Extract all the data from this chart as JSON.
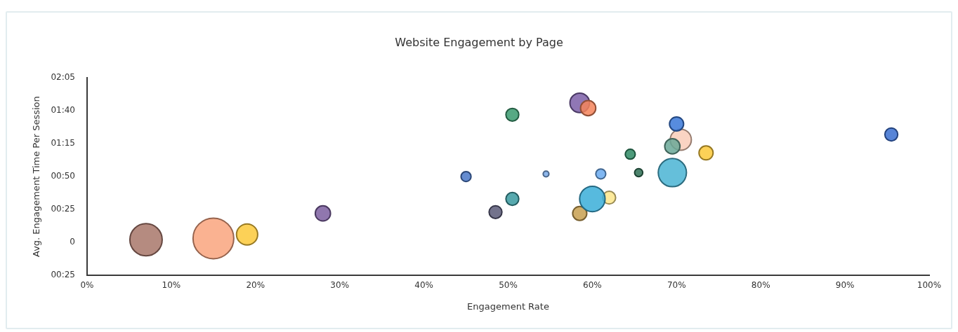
{
  "chart_data": {
    "type": "bubble",
    "title": "Website Engagement by Page",
    "xlabel": "Engagement Rate",
    "ylabel": "Avg. Engagement Time Per Session",
    "x": [
      7,
      15,
      19,
      28,
      45,
      50.5,
      50.5,
      48.5,
      54.5,
      61,
      58.5,
      59.5,
      58.5,
      62,
      60,
      64.5,
      65.5,
      70.5,
      70,
      69.5,
      69.5,
      73.5,
      95.5
    ],
    "values": [
      2,
      3,
      6,
      22,
      50,
      97,
      33,
      23,
      52,
      52,
      106,
      102,
      22,
      34,
      33,
      67,
      53,
      78,
      90,
      73,
      53,
      68,
      82
    ],
    "sizes": [
      0.63,
      1,
      0.27,
      0.14,
      0.06,
      0.1,
      0.1,
      0.1,
      0.02,
      0.06,
      0.23,
      0.14,
      0.12,
      0.1,
      0.39,
      0.06,
      0.04,
      0.27,
      0.12,
      0.14,
      0.48,
      0.12,
      0.1
    ],
    "colors": [
      "#a8776a",
      "#f9a47e",
      "#fcc93a",
      "#7c5fa0",
      "#4a78c8",
      "#3a9a6e",
      "#3a9aa0",
      "#5a5a78",
      "#7aaae8",
      "#6aaaf0",
      "#7c5fa8",
      "#f4845a",
      "#c8a050",
      "#fde68a",
      "#3aaed8",
      "#2e8a64",
      "#2e6e54",
      "#f9cdb8",
      "#3a78d8",
      "#6aa898",
      "#4ab4d4",
      "#fcc93a",
      "#3a6ed0"
    ],
    "xlim": [
      0,
      100
    ],
    "xticks": [
      {
        "value": 0,
        "label": "0%"
      },
      {
        "value": 10,
        "label": "10%"
      },
      {
        "value": 20,
        "label": "20%"
      },
      {
        "value": 30,
        "label": "30%"
      },
      {
        "value": 40,
        "label": "40%"
      },
      {
        "value": 50,
        "label": "50%"
      },
      {
        "value": 60,
        "label": "60%"
      },
      {
        "value": 70,
        "label": "70%"
      },
      {
        "value": 80,
        "label": "80%"
      },
      {
        "value": 90,
        "label": "90%"
      },
      {
        "value": 100,
        "label": "100%"
      }
    ],
    "ylim": [
      -25,
      125
    ],
    "yticks": [
      {
        "value": -25,
        "label": "00:25"
      },
      0,
      {
        "value": 25,
        "label": "00:25"
      },
      {
        "value": 50,
        "label": "00:50"
      },
      {
        "value": 75,
        "label": "01:15"
      },
      {
        "value": 100,
        "label": "01:40"
      },
      {
        "value": 125,
        "label": "02:05"
      }
    ],
    "legend": false
  }
}
